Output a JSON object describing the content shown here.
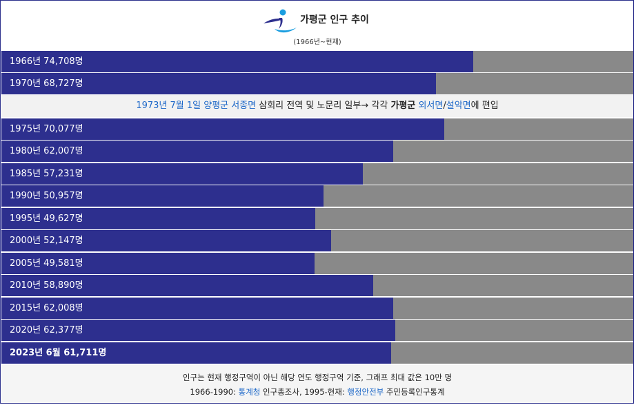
{
  "header": {
    "title": "가평군 인구 추이",
    "subtitle": "(1966년~현재)"
  },
  "note": {
    "part1_link": "1973년 7월 1일 양평군 서종면",
    "part2": " 삼회리 전역 및 노문리 일부→ 각각 ",
    "part3_bold": "가평군",
    "part4_space": " ",
    "part5_link": "외서면",
    "part6": "/",
    "part7_link": "설악면",
    "part8": "에 편입"
  },
  "footer": {
    "line1": "인구는 현재 행정구역이 아닌 해당 연도 행정구역 기준, 그래프 최대 값은 10만 명",
    "line2_a": "1966-1990: ",
    "line2_link1": "통계청",
    "line2_b": " 인구총조사, 1995-현재: ",
    "line2_link2": "행정안전부",
    "line2_c": " 주민등록인구통계"
  },
  "chart_data": {
    "type": "bar",
    "orientation": "horizontal",
    "max_value": 100000,
    "colors": {
      "bar": "#2d2f8e",
      "track": "#898989",
      "link": "#1a66c8"
    },
    "rows": [
      {
        "label": "1966년 74,708명",
        "value": 74708,
        "bold": false
      },
      {
        "label": "1970년 68,727명",
        "value": 68727,
        "bold": false
      },
      {
        "label": "1975년 70,077명",
        "value": 70077,
        "bold": false
      },
      {
        "label": "1980년 62,007명",
        "value": 62007,
        "bold": false
      },
      {
        "label": "1985년 57,231명",
        "value": 57231,
        "bold": false
      },
      {
        "label": "1990년 50,957명",
        "value": 50957,
        "bold": false
      },
      {
        "label": "1995년 49,627명",
        "value": 49627,
        "bold": false
      },
      {
        "label": "2000년 52,147명",
        "value": 52147,
        "bold": false
      },
      {
        "label": "2005년 49,581명",
        "value": 49581,
        "bold": false
      },
      {
        "label": "2010년 58,890명",
        "value": 58890,
        "bold": false
      },
      {
        "label": "2015년 62,008명",
        "value": 62008,
        "bold": false
      },
      {
        "label": "2020년 62,377명",
        "value": 62377,
        "bold": false
      },
      {
        "label": "2023년 6월 61,711명",
        "value": 61711,
        "bold": true
      }
    ]
  }
}
